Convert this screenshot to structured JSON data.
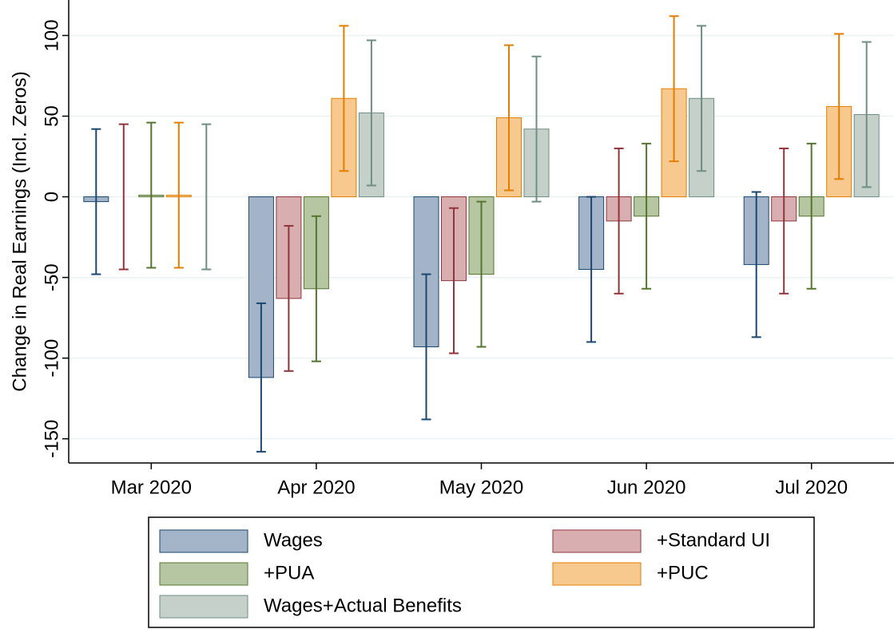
{
  "chart_data": {
    "type": "bar",
    "y_label": "Change in Real Earnings (Incl. Zeros)",
    "categories": [
      "Mar 2020",
      "Apr 2020",
      "May 2020",
      "Jun 2020",
      "Jul 2020"
    ],
    "series": [
      {
        "name": "Wages",
        "color": "#a3b4c8",
        "edge_color": "#1a476f",
        "values": [
          -3,
          -112,
          -93,
          -45,
          -42
        ],
        "errors": [
          45,
          46,
          45,
          45,
          45
        ]
      },
      {
        "name": "+Standard UI",
        "color": "#d9aeb0",
        "edge_color": "#90353b",
        "values": [
          0,
          -63,
          -52,
          -15,
          -15
        ],
        "errors": [
          45,
          45,
          45,
          45,
          45
        ]
      },
      {
        "name": "+PUA",
        "color": "#b6c6a2",
        "edge_color": "#55752f",
        "values": [
          1,
          -57,
          -48,
          -12,
          -12
        ],
        "errors": [
          45,
          45,
          45,
          45,
          45
        ]
      },
      {
        "name": "+PUC",
        "color": "#f7c98f",
        "edge_color": "#e37e00",
        "values": [
          1,
          61,
          49,
          67,
          56
        ],
        "errors": [
          45,
          45,
          45,
          45,
          45
        ]
      },
      {
        "name": "Wages+Actual Benefits",
        "color": "#c5d0cb",
        "edge_color": "#6e8e84",
        "values": [
          0,
          52,
          42,
          61,
          51
        ],
        "errors": [
          45,
          45,
          45,
          45,
          45
        ]
      }
    ],
    "ylim": [
      -165,
      122
    ],
    "yticks": [
      -150,
      -100,
      -50,
      0,
      50,
      100
    ],
    "grid": true
  }
}
